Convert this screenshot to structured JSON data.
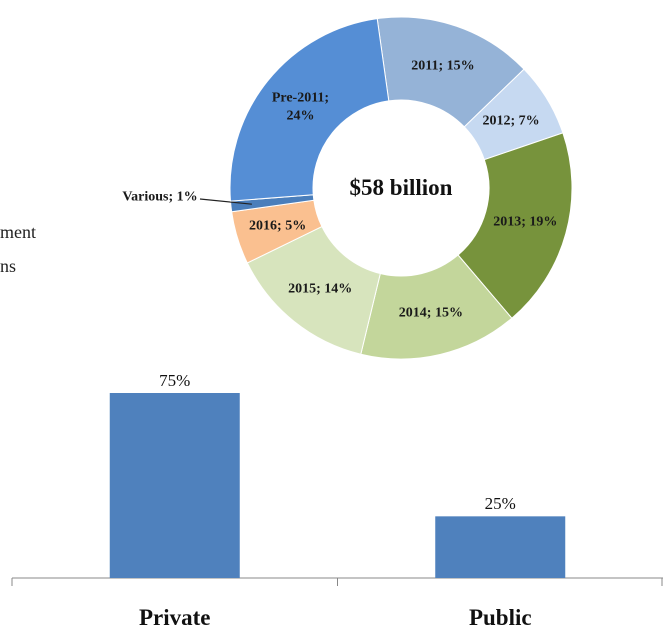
{
  "left_text": [
    "ment",
    "ns"
  ],
  "chart_data": [
    {
      "type": "donut",
      "center_label": "$58 billion",
      "categories": [
        "2011",
        "2012",
        "2013",
        "2014",
        "2015",
        "2016",
        "Various",
        "Pre-2011"
      ],
      "values": [
        15,
        7,
        19,
        15,
        14,
        5,
        1,
        24
      ],
      "value_labels": [
        "2011; 15%",
        "2012; 7%",
        "2013; 19%",
        "2014; 15%",
        "2015; 14%",
        "2016; 5%",
        "Various; 1%",
        "Pre-2011; 24%"
      ],
      "colors": [
        "#95b3d7",
        "#c6d9f1",
        "#77933c",
        "#c3d69b",
        "#d7e4bd",
        "#fac090",
        "#4a7ebb",
        "#558ed5"
      ]
    },
    {
      "type": "bar",
      "categories": [
        "Private",
        "Public"
      ],
      "values": [
        75,
        25
      ],
      "value_labels": [
        "75%",
        "25%"
      ],
      "color": "#4f81bd"
    }
  ]
}
